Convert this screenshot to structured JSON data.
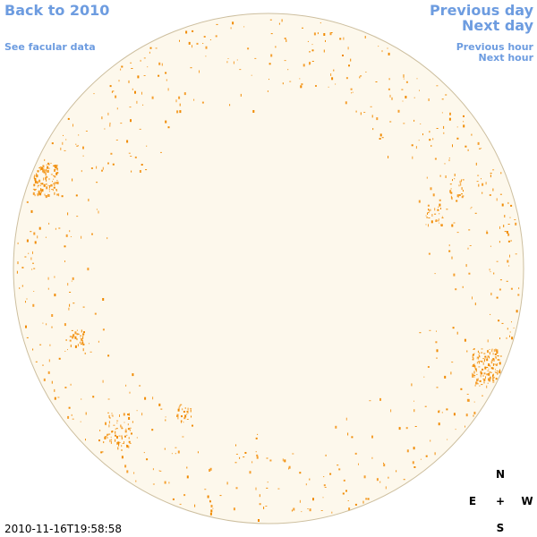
{
  "links": {
    "back": "Back to 2010",
    "facular": "See facular data",
    "previous_day": "Previous day",
    "next_day": "Next day",
    "previous_hour": "Previous hour",
    "next_hour": "Next hour"
  },
  "timestamp": "2010-11-16T19:58:58",
  "compass": {
    "north": "N",
    "east": "E",
    "center": "+",
    "west": "W",
    "south": "S"
  }
}
